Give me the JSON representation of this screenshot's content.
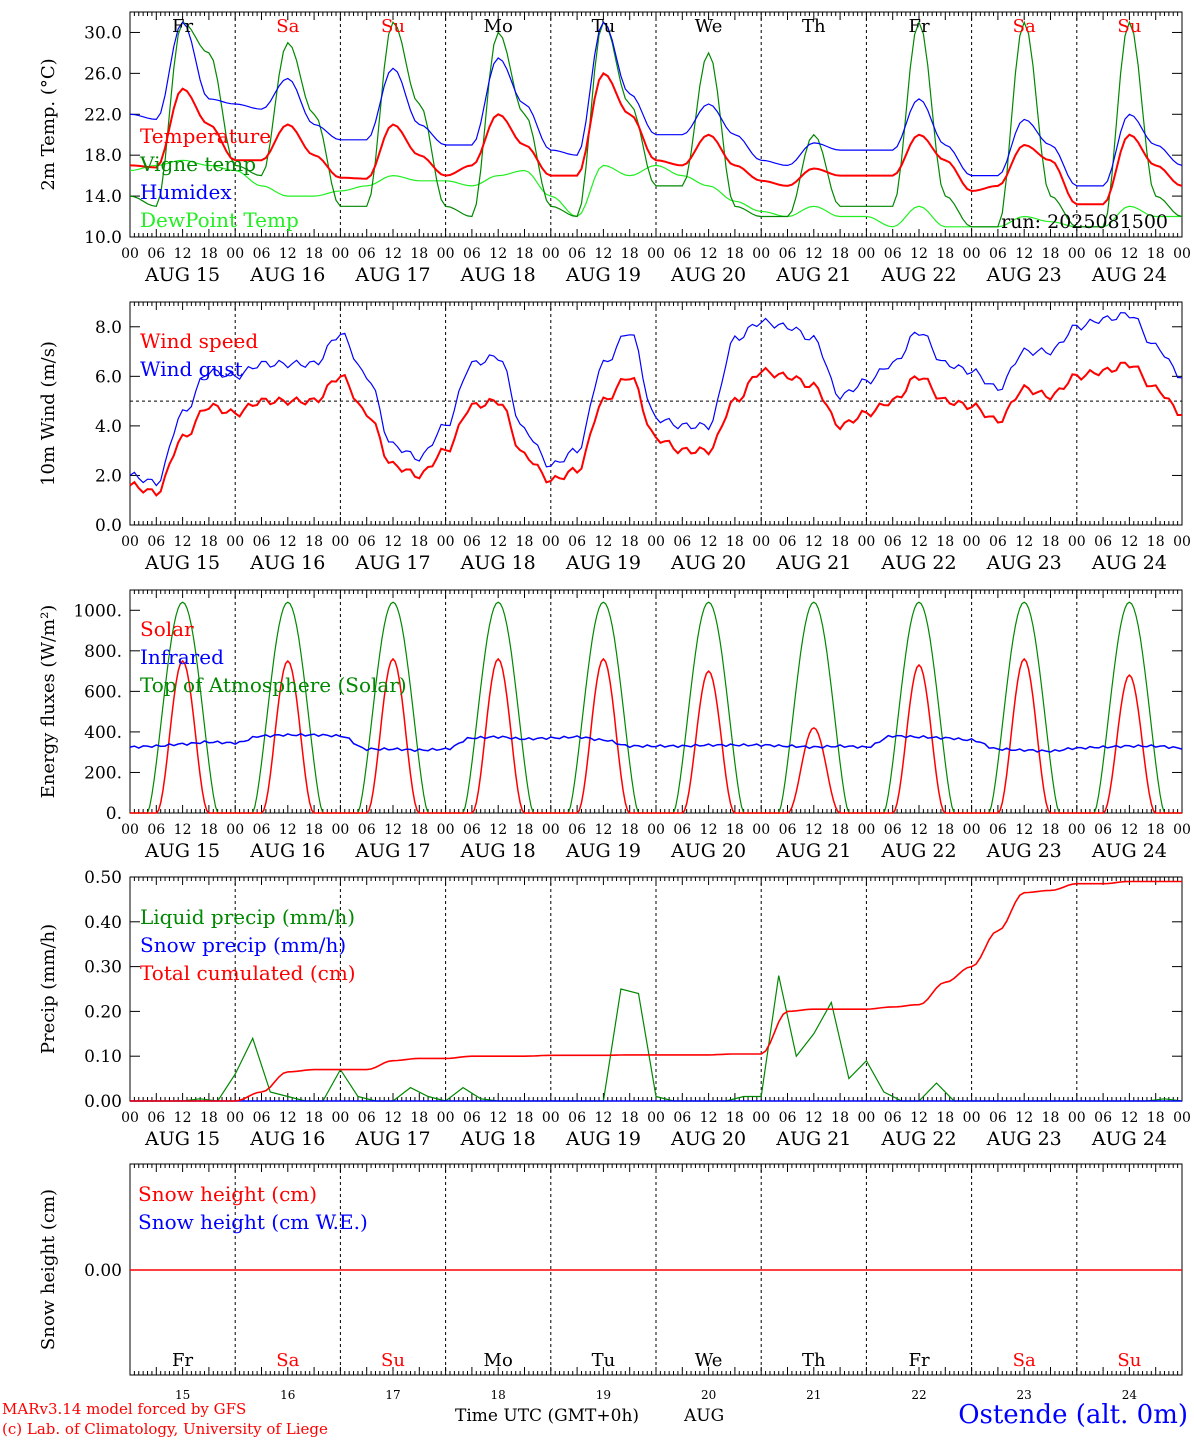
{
  "run_label": "run: 2025081500",
  "x_axis": {
    "hour_ticks": [
      "00",
      "06",
      "12",
      "18"
    ],
    "final_tick": "00",
    "dates": [
      "AUG 15",
      "AUG 16",
      "AUG 17",
      "AUG 18",
      "AUG 19",
      "AUG 20",
      "AUG 21",
      "AUG 22",
      "AUG 23",
      "AUG 24"
    ],
    "day_names": [
      "Fr",
      "Sa",
      "Su",
      "Mo",
      "Tu",
      "We",
      "Th",
      "Fr",
      "Sa",
      "Su"
    ],
    "weekend_days": [
      1,
      2,
      8,
      9
    ],
    "day_numbers": [
      "15",
      "16",
      "17",
      "18",
      "19",
      "20",
      "21",
      "22",
      "23",
      "24"
    ],
    "title": "Time UTC (GMT+0h)",
    "month": "AUG"
  },
  "footer": {
    "model": "MARv3.14 model forced by GFS",
    "credit": "(c) Lab. of Climatology, University of Liege",
    "station": "Ostende (alt. 0m)"
  },
  "colors": {
    "red": "#ff0000",
    "green": "#008800",
    "blue": "#0000ff",
    "lightgreen": "#22ee22",
    "weekend": "#ff0000"
  },
  "chart_data": [
    {
      "type": "line",
      "ylabel": "2m Temp. (°C)",
      "ylim": [
        10,
        32
      ],
      "yticks": [
        "10.0",
        "14.0",
        "18.0",
        "22.0",
        "26.0",
        "30.0"
      ],
      "x_hours": [
        0,
        6,
        12,
        18,
        24,
        30,
        36,
        42,
        48,
        54,
        60,
        66,
        72,
        78,
        84,
        90,
        96,
        102,
        108,
        114,
        120,
        126,
        132,
        138,
        144,
        150,
        156,
        162,
        168,
        174,
        180,
        186,
        192,
        198,
        204,
        210,
        216,
        222,
        228,
        234,
        240
      ],
      "series": [
        {
          "name": "Temperature",
          "color": "red",
          "values": [
            17,
            16.8,
            24.5,
            21,
            17.5,
            17.5,
            21,
            18,
            15.8,
            15.7,
            21,
            18,
            16,
            17,
            22,
            19,
            16,
            16,
            26,
            22,
            17.5,
            17,
            20,
            17,
            15.5,
            15,
            16.7,
            16,
            16,
            16,
            20,
            17.5,
            14.5,
            15,
            19,
            17.5,
            13.2,
            13.2,
            20,
            17,
            15
          ]
        },
        {
          "name": "Vigne temp",
          "color": "green",
          "values": [
            14,
            13,
            31,
            28,
            17,
            16,
            29,
            22,
            13,
            13,
            31,
            23,
            13,
            12,
            30,
            22,
            13,
            12,
            31,
            23,
            15,
            15,
            28,
            13,
            12,
            12,
            20,
            13,
            13,
            13,
            31,
            14,
            11,
            11,
            31,
            14,
            11,
            11,
            31,
            14,
            12
          ]
        },
        {
          "name": "Humidex",
          "color": "blue",
          "values": [
            22,
            21.5,
            31,
            23.5,
            23,
            22.5,
            25.5,
            21,
            19.5,
            19.5,
            26.5,
            21,
            19,
            19,
            27.5,
            23,
            18.5,
            18,
            31,
            24,
            20,
            20,
            23,
            20,
            17.5,
            17,
            19.2,
            18.5,
            18.5,
            18.5,
            23.5,
            19,
            16,
            16,
            21.5,
            19,
            15,
            15,
            22,
            19,
            17
          ]
        },
        {
          "name": "DewPoint Temp",
          "color": "lightgreen",
          "values": [
            16.5,
            17,
            17.5,
            17,
            16.5,
            15,
            14,
            14,
            14.5,
            15,
            16,
            15.5,
            15.5,
            15,
            16,
            16.5,
            14,
            12,
            17,
            16,
            17,
            16,
            15,
            13.5,
            12.5,
            12,
            13,
            12,
            12,
            11,
            13,
            11,
            11,
            11,
            12,
            11.5,
            11,
            11,
            13,
            12,
            12
          ]
        }
      ]
    },
    {
      "type": "line",
      "ylabel": "10m Wind (m/s)",
      "ylim": [
        0,
        9
      ],
      "yticks": [
        "0.0",
        "2.0",
        "4.0",
        "6.0",
        "8.0"
      ],
      "reference_line": 5,
      "x_hours": [
        0,
        6,
        12,
        18,
        24,
        30,
        36,
        42,
        48,
        54,
        60,
        66,
        72,
        78,
        84,
        90,
        96,
        102,
        108,
        114,
        120,
        126,
        132,
        138,
        144,
        150,
        156,
        162,
        168,
        174,
        180,
        186,
        192,
        198,
        204,
        210,
        216,
        222,
        228,
        234,
        240
      ],
      "series": [
        {
          "name": "Wind speed",
          "color": "red",
          "values": [
            1.6,
            1.3,
            3.5,
            4.8,
            4.5,
            5,
            5,
            5,
            6,
            4.5,
            2.4,
            2,
            3,
            4.8,
            5,
            2.8,
            1.8,
            2.2,
            5,
            6,
            3.5,
            3,
            3,
            5,
            6.2,
            6,
            5.6,
            4,
            4.5,
            5,
            6,
            5,
            4.8,
            4.2,
            5.5,
            5.2,
            6,
            6.2,
            6.5,
            5.5,
            4.5
          ]
        },
        {
          "name": "Wind gust",
          "color": "blue",
          "values": [
            2.0,
            1.7,
            4.5,
            6.2,
            6,
            6.5,
            6.5,
            6.5,
            7.7,
            6,
            3.2,
            2.7,
            4,
            6.5,
            6.8,
            3.8,
            2.4,
            3,
            6.5,
            7.8,
            4.3,
            4,
            4,
            7.5,
            8.2,
            8,
            7.5,
            5.2,
            5.8,
            6.5,
            7.8,
            6.5,
            6.2,
            5.5,
            7,
            7,
            8,
            8.3,
            8.5,
            7.2,
            6
          ]
        }
      ]
    },
    {
      "type": "line",
      "ylabel": "Energy fluxes (W/m²)",
      "ylim": [
        0,
        1100
      ],
      "yticks": [
        "0.",
        "200.",
        "400.",
        "600.",
        "800.",
        "1000."
      ],
      "series": [
        {
          "name": "Solar",
          "color": "red",
          "peaks": [
            750,
            750,
            760,
            760,
            760,
            700,
            420,
            730,
            760,
            680
          ]
        },
        {
          "name": "Infrared",
          "color": "blue",
          "values": [
            325,
            330,
            340,
            350,
            345,
            380,
            385,
            385,
            380,
            315,
            315,
            310,
            315,
            370,
            375,
            365,
            370,
            375,
            360,
            330,
            330,
            330,
            335,
            335,
            335,
            330,
            325,
            330,
            325,
            380,
            375,
            370,
            360,
            315,
            310,
            305,
            320,
            325,
            330,
            330,
            320
          ]
        },
        {
          "name": "Top of Atmosphere (Solar)",
          "color": "green",
          "peak": 1040
        }
      ]
    },
    {
      "type": "line",
      "ylabel": "Precip (mm/h)",
      "ylim": [
        0,
        0.5
      ],
      "yticks": [
        "0.00",
        "0.10",
        "0.20",
        "0.30",
        "0.40",
        "0.50"
      ],
      "series": [
        {
          "name": "Liquid precip (mm/h)",
          "color": "green",
          "values": [
            0,
            0,
            0,
            0,
            0.005,
            0,
            0.06,
            0.14,
            0.02,
            0.01,
            0,
            0,
            0.07,
            0.01,
            0,
            0,
            0.03,
            0.01,
            0,
            0.03,
            0.005,
            0,
            0,
            0,
            0,
            0,
            0,
            0,
            0.25,
            0.24,
            0.01,
            0,
            0,
            0,
            0,
            0.01,
            0.01,
            0.28,
            0.1,
            0.15,
            0.22,
            0.05,
            0.09,
            0.02,
            0,
            0,
            0.04,
            0,
            0,
            0,
            0,
            0,
            0,
            0,
            0,
            0,
            0,
            0,
            0,
            0.005,
            0
          ]
        },
        {
          "name": "Snow precip (mm/h)",
          "color": "blue",
          "values": [
            0
          ]
        },
        {
          "name": "Total cumulated (cm)",
          "color": "red",
          "values": [
            0,
            0,
            0,
            0,
            0,
            0.02,
            0.065,
            0.07,
            0.07,
            0.07,
            0.09,
            0.095,
            0.095,
            0.1,
            0.1,
            0.1,
            0.102,
            0.102,
            0.102,
            0.103,
            0.103,
            0.103,
            0.103,
            0.105,
            0.105,
            0.2,
            0.205,
            0.205,
            0.205,
            0.21,
            0.215,
            0.265,
            0.3,
            0.38,
            0.465,
            0.47,
            0.485,
            0.485,
            0.49,
            0.49,
            0.49
          ]
        }
      ]
    },
    {
      "type": "line",
      "ylabel": "Snow height (cm)",
      "yticks": [
        "0.00"
      ],
      "series": [
        {
          "name": "Snow height (cm)",
          "color": "red",
          "values": [
            0
          ]
        },
        {
          "name": "Snow height (cm W.E.)",
          "color": "blue",
          "values": [
            0
          ]
        }
      ]
    }
  ]
}
